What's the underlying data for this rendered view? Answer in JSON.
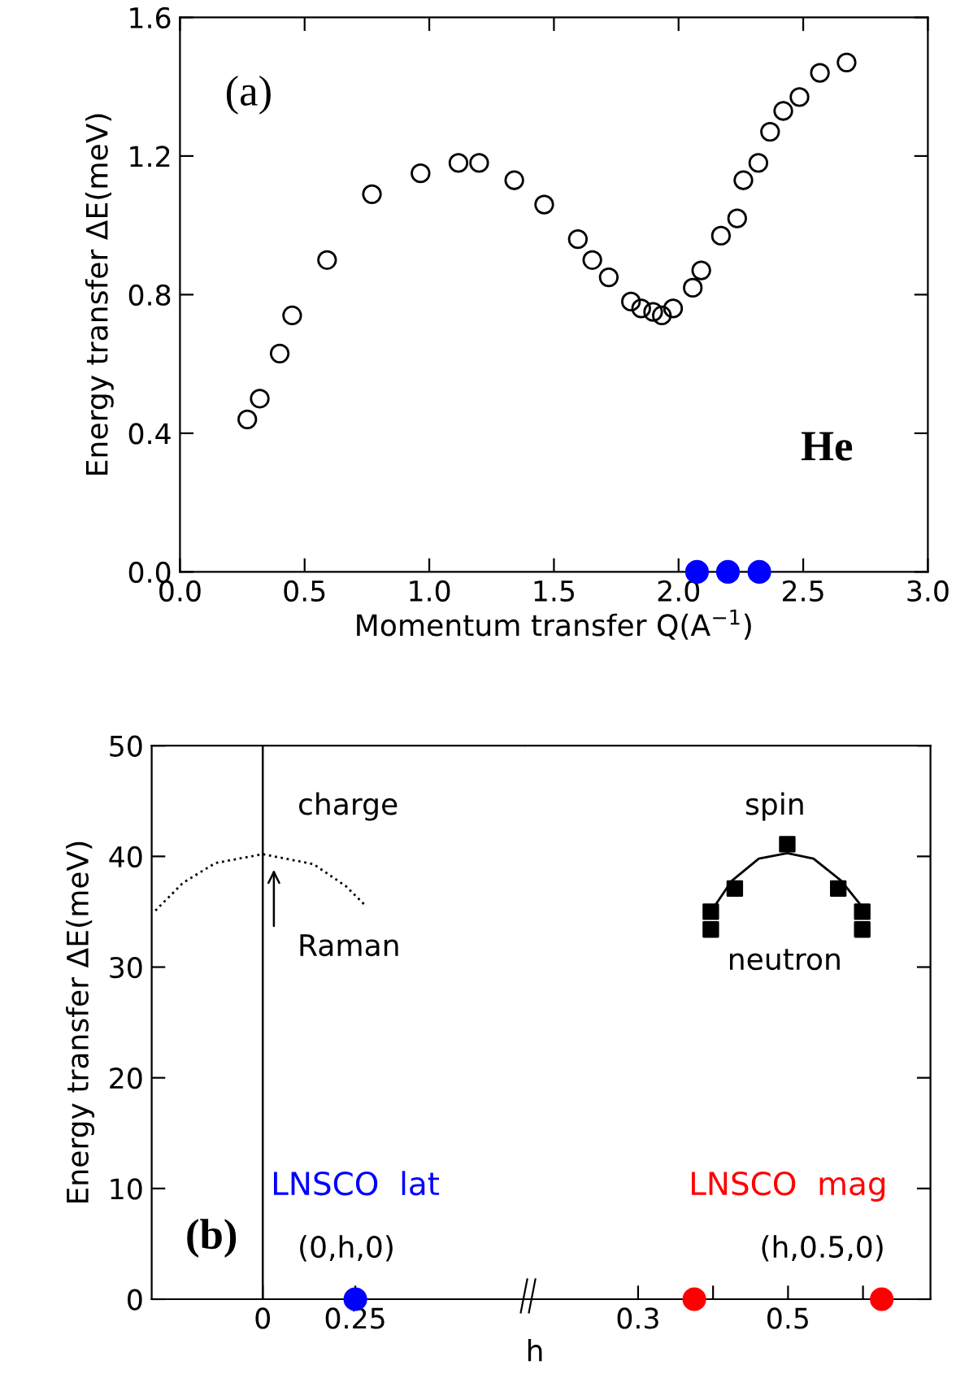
{
  "chart_data": [
    {
      "type": "scatter",
      "xlabel": "Momentum transfer Q(A$^{−1}$)",
      "ylabel": "Energy transfer ΔE(meV)",
      "marker": "circle",
      "xlim": [
        0,
        3
      ],
      "ylim": [
        0,
        1.6
      ],
      "xticks": [
        {
          "value": 0,
          "label": "0.0"
        },
        {
          "value": 0.5,
          "label": "0.5"
        },
        {
          "value": 1,
          "label": "1.0"
        },
        {
          "value": 1.5,
          "label": "1.5"
        },
        {
          "value": 2,
          "label": "2.0"
        },
        {
          "value": 2.5,
          "label": "2.5"
        },
        {
          "value": 3,
          "label": "3.0"
        }
      ],
      "yticks": [
        {
          "value": 0,
          "label": "0.0"
        },
        {
          "value": 0.4,
          "label": "0.4"
        },
        {
          "value": 0.8,
          "label": "0.8"
        },
        {
          "value": 1.2,
          "label": "1.2"
        },
        {
          "value": 1.6,
          "label": "1.6"
        }
      ],
      "series": [
        {
          "color": "#000000",
          "x": [
            0.27,
            0.32,
            0.4,
            0.45,
            0.59,
            0.77,
            0.965,
            1.117,
            1.2,
            1.341,
            1.461,
            1.596,
            1.654,
            1.72,
            1.809,
            1.85,
            1.898,
            1.933,
            1.978,
            2.057,
            2.091,
            2.17,
            2.235,
            2.26,
            2.32,
            2.367,
            2.42,
            2.485,
            2.567,
            2.674
          ],
          "values": [
            0.44,
            0.5,
            0.63,
            0.74,
            0.9,
            1.09,
            1.15,
            1.18,
            1.18,
            1.13,
            1.06,
            0.96,
            0.9,
            0.85,
            0.78,
            0.76,
            0.75,
            0.74,
            0.76,
            0.82,
            0.87,
            0.97,
            1.02,
            1.13,
            1.18,
            1.27,
            1.33,
            1.37,
            1.44,
            1.47
          ]
        },
        {
          "color": "#0000ff",
          "x": [
            2.074,
            2.198,
            2.324
          ],
          "values": [
            0,
            0,
            0
          ]
        }
      ],
      "annotations": [
        "(a)",
        "He"
      ]
    },
    {
      "type": "scatter",
      "ylabel": "Energy transfer ΔE(meV)",
      "xlim": [
        -0.3,
        0.71
      ],
      "ylim": [
        0,
        50
      ],
      "xticks": [
        0,
        0.25
      ],
      "yticks": [
        0,
        10,
        20,
        30,
        40,
        50
      ],
      "series": [
        {
          "type": "line",
          "line_style": "dotted",
          "color": "#000000",
          "x": [
            -0.29,
            -0.216,
            -0.128,
            0,
            0.137,
            0.225,
            0.276
          ],
          "values": [
            35.1,
            37.6,
            39.4,
            40.2,
            39.3,
            37.3,
            35.6
          ]
        },
        {
          "name": "LNSCO  lat",
          "color": "#0000ff",
          "marker": "circle",
          "x": [
            0.25
          ],
          "values": [
            0
          ]
        }
      ],
      "ref_lines": [
        {
          "axis": "x",
          "value": 0,
          "color": "#000000"
        }
      ],
      "annotations": [
        "(b)",
        "charge",
        "(0,h,0)",
        "Raman"
      ]
    },
    {
      "type": "scatter",
      "xlabel": "h",
      "xlim": [
        0.15,
        0.69
      ],
      "ylim": [
        0,
        50
      ],
      "xticks": [
        0.3,
        {
          "value": 0.4,
          "label": null
        },
        0.5,
        {
          "value": 0.6,
          "label": null
        }
      ],
      "yticks": [
        0,
        10,
        20,
        30,
        40,
        50
      ],
      "tick_labels": "x",
      "series": [
        {
          "type": "line",
          "color": "#000000",
          "x": [
            0.403,
            0.425,
            0.461,
            0.499,
            0.534,
            0.571,
            0.597
          ],
          "values": [
            35.6,
            37.8,
            39.8,
            40.3,
            39.8,
            37.8,
            35.6
          ]
        },
        {
          "color": "#000000",
          "marker": "square",
          "x": [
            0.397,
            0.397,
            0.429,
            0.499,
            0.567,
            0.599,
            0.599
          ],
          "values": [
            35.0,
            33.4,
            37.1,
            41.1,
            37.1,
            35.0,
            33.4
          ]
        },
        {
          "name": "LNSCO  mag",
          "color": "#ff0000",
          "marker": "circle",
          "x": [
            0.375,
            0.625
          ],
          "values": [
            0,
            0
          ]
        }
      ],
      "annotations": [
        "spin",
        "neutron",
        "(h,0.5,0)"
      ]
    }
  ]
}
